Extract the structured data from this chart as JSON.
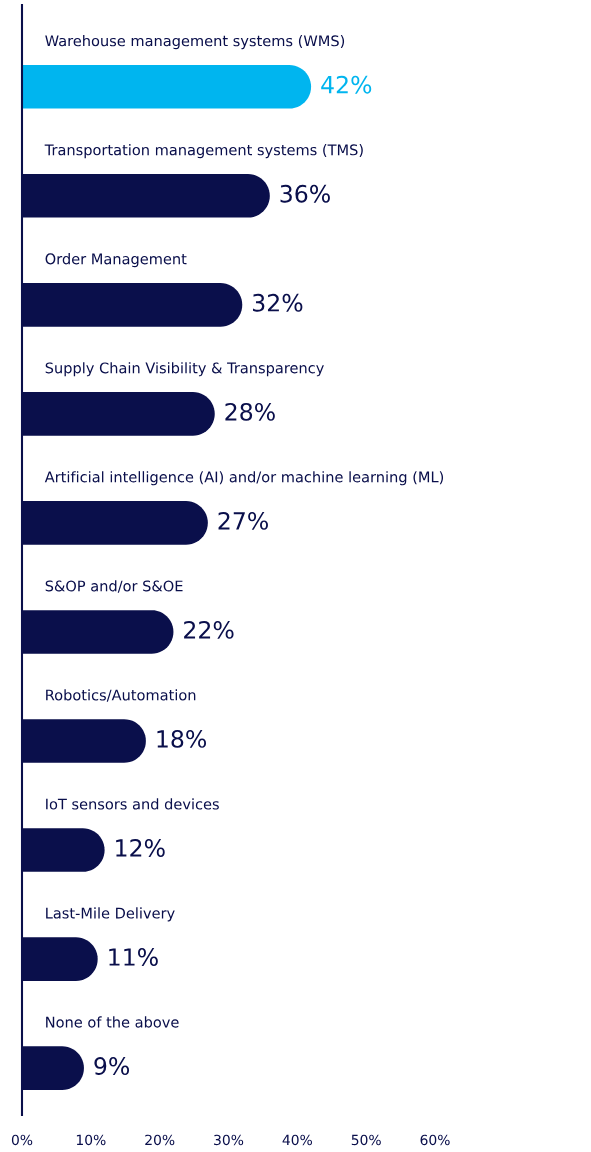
{
  "chart_data": {
    "type": "bar",
    "orientation": "horizontal",
    "categories": [
      "Warehouse management systems (WMS)",
      "Transportation management systems (TMS)",
      "Order Management",
      "Supply Chain Visibility & Transparency",
      "Artificial intelligence (AI) and/or machine learning (ML)",
      "S&OP and/or S&OE",
      "Robotics/Automation",
      "IoT sensors and devices",
      "Last-Mile Delivery",
      "None of the above"
    ],
    "values": [
      42,
      36,
      32,
      28,
      27,
      22,
      18,
      12,
      11,
      9
    ],
    "value_labels": [
      "42%",
      "36%",
      "32%",
      "28%",
      "27%",
      "22%",
      "18%",
      "12%",
      "11%",
      "9%"
    ],
    "colors": [
      "#00b5ef",
      "#0a0f4b",
      "#0a0f4b",
      "#0a0f4b",
      "#0a0f4b",
      "#0a0f4b",
      "#0a0f4b",
      "#0a0f4b",
      "#0a0f4b",
      "#0a0f4b"
    ],
    "xlim": [
      0,
      60
    ],
    "xticks": [
      {
        "value": 0,
        "label": "0%"
      },
      {
        "value": 10,
        "label": "10%"
      },
      {
        "value": 20,
        "label": "20%"
      },
      {
        "value": 30,
        "label": "30%"
      },
      {
        "value": 40,
        "label": "40%"
      },
      {
        "value": 50,
        "label": "50%"
      },
      {
        "value": 60,
        "label": "60%"
      }
    ],
    "grid": false
  }
}
